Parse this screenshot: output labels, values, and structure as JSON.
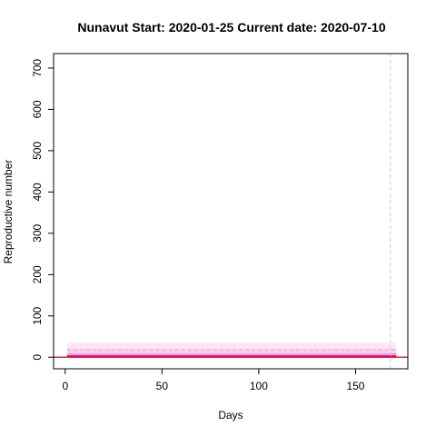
{
  "chart_data": {
    "type": "line",
    "title": "Nunavut Start:  2020-01-25   Current date:  2020-07-10",
    "xlabel": "Days",
    "ylabel": "Reproductive number",
    "xlim": [
      -6,
      177
    ],
    "ylim": [
      -28,
      735
    ],
    "x_ticks": [
      0,
      50,
      100,
      150
    ],
    "y_ticks": [
      0,
      100,
      200,
      300,
      400,
      500,
      600,
      700
    ],
    "grid": false,
    "legend": "none",
    "current_day": 168,
    "reference_line": {
      "y": 0,
      "color": "#e8231a"
    },
    "series": [
      {
        "x": [
          1,
          171
        ],
        "median": [
          2,
          2
        ],
        "band_50": [
          [
            0,
            5
          ],
          [
            0,
            5
          ]
        ],
        "band_90": [
          [
            0,
            10
          ],
          [
            0,
            10
          ]
        ],
        "band_95": [
          [
            0,
            20
          ],
          [
            0,
            20
          ]
        ],
        "band_99": [
          [
            0,
            35
          ],
          [
            0,
            35
          ]
        ],
        "dashed_upper": [
          18,
          18
        ]
      }
    ],
    "colors": {
      "band_light": "#ffcdf3",
      "band_mid": "#ff8fe0",
      "band_inner": "#ff4fc9",
      "median": "#d4006f",
      "dashed": "#e3a5bf",
      "current_date_line": "#c8c8c8"
    }
  }
}
